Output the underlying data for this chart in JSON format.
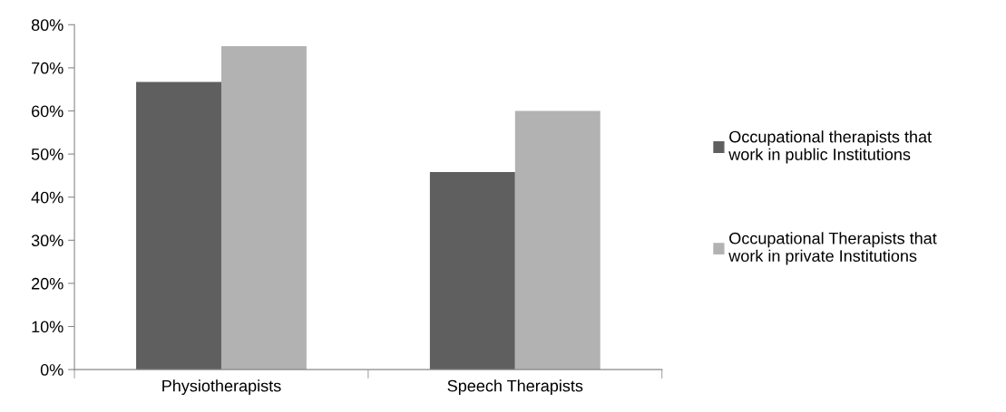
{
  "chart_data": {
    "type": "bar",
    "categories": [
      "Physiotherapists",
      "Speech Therapists"
    ],
    "series": [
      {
        "name": "Occupational therapists that\nwork in public Institutions",
        "color": "#5f5f5f",
        "values": [
          66.7,
          45.8
        ]
      },
      {
        "name": "Occupational Therapists that\nwork in private Institutions",
        "color": "#b2b2b2",
        "values": [
          75,
          60
        ]
      }
    ],
    "ylim": [
      0,
      80
    ],
    "yticks": [
      {
        "value": 0,
        "label": "0%"
      },
      {
        "value": 10,
        "label": "10%"
      },
      {
        "value": 20,
        "label": "20%"
      },
      {
        "value": 30,
        "label": "30%"
      },
      {
        "value": 40,
        "label": "40%"
      },
      {
        "value": 50,
        "label": "50%"
      },
      {
        "value": 60,
        "label": "60%"
      },
      {
        "value": 70,
        "label": "70%"
      },
      {
        "value": 80,
        "label": "80%"
      }
    ],
    "grid": false,
    "legend": "right"
  }
}
